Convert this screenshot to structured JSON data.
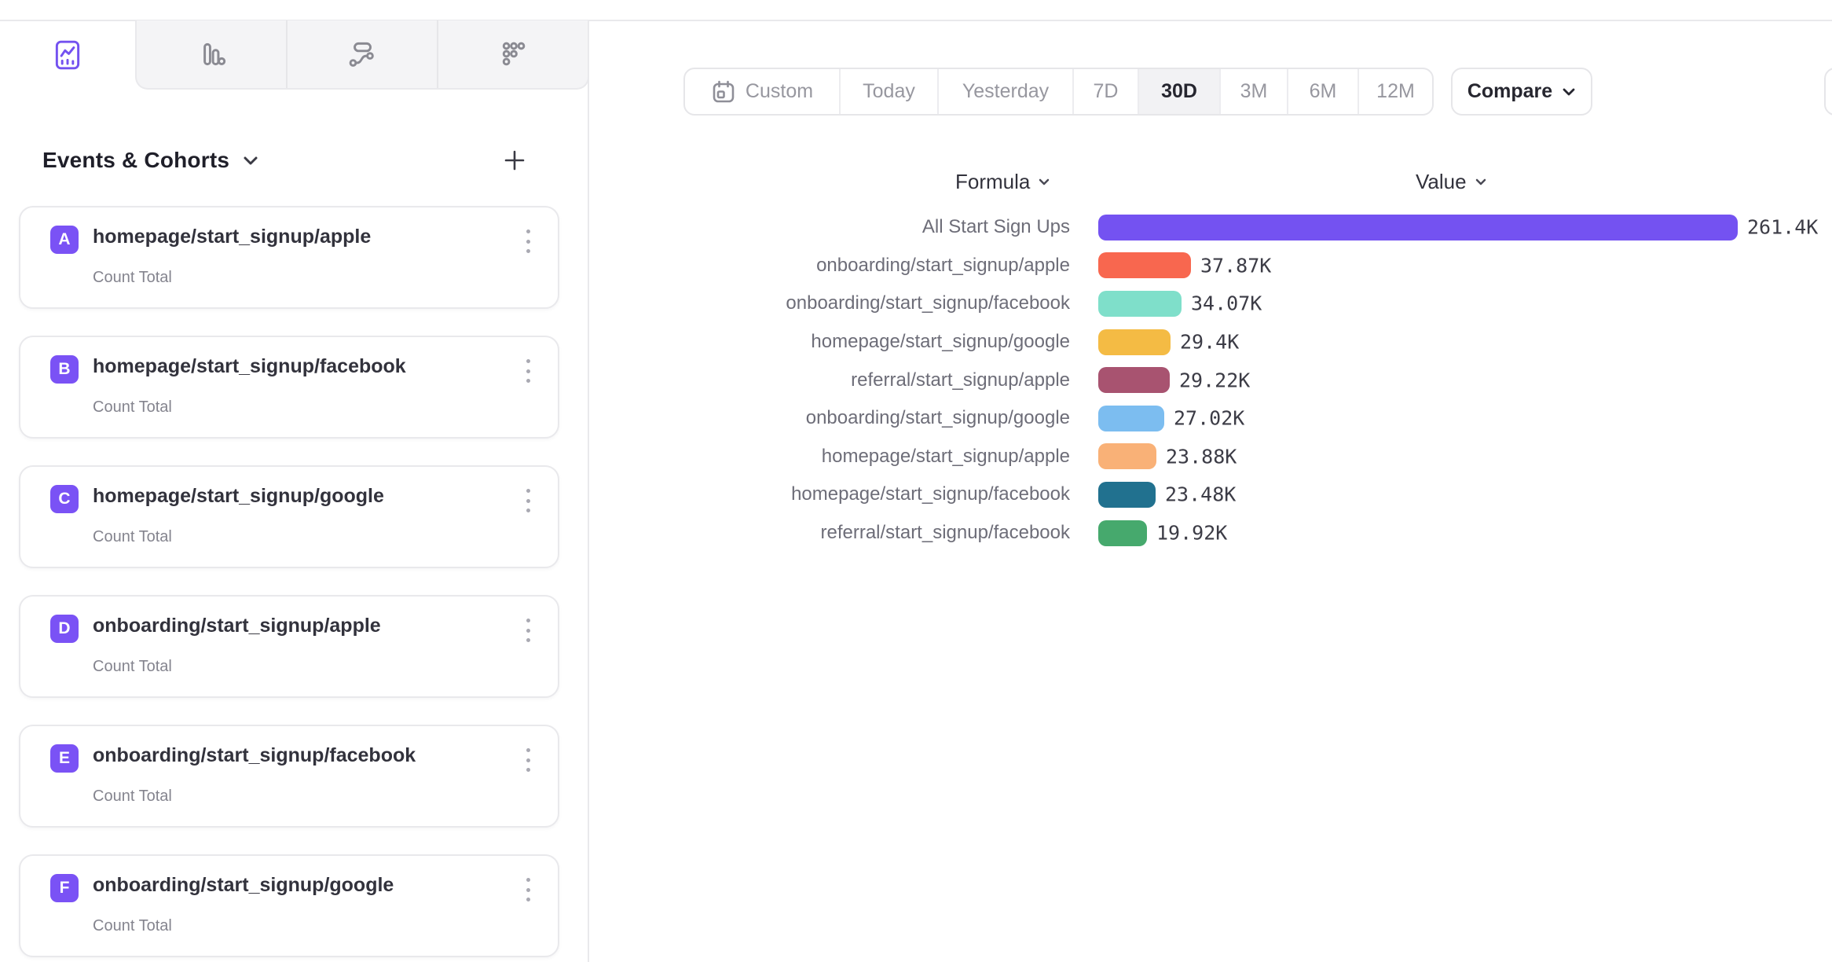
{
  "tabs": {
    "items": [
      {
        "icon": "insights-line-chart-icon",
        "active": true
      },
      {
        "icon": "funnels-bar-icon",
        "active": false
      },
      {
        "icon": "flows-icon",
        "active": false
      },
      {
        "icon": "retention-grid-icon",
        "active": false
      }
    ]
  },
  "sidebar": {
    "header": {
      "title": "Events & Cohorts"
    },
    "badge_color": "#7a52f5",
    "measure_label": "Count Total",
    "cards": [
      {
        "letter": "A",
        "name": "homepage/start_signup/apple",
        "measure": "Count Total"
      },
      {
        "letter": "B",
        "name": "homepage/start_signup/facebook",
        "measure": "Count Total"
      },
      {
        "letter": "C",
        "name": "homepage/start_signup/google",
        "measure": "Count Total"
      },
      {
        "letter": "D",
        "name": "onboarding/start_signup/apple",
        "measure": "Count Total"
      },
      {
        "letter": "E",
        "name": "onboarding/start_signup/facebook",
        "measure": "Count Total"
      },
      {
        "letter": "F",
        "name": "onboarding/start_signup/google",
        "measure": "Count Total"
      }
    ]
  },
  "toolbar": {
    "ranges": [
      {
        "label": "Custom",
        "icon": "calendar-icon",
        "active": false
      },
      {
        "label": "Today",
        "active": false
      },
      {
        "label": "Yesterday",
        "active": false
      },
      {
        "label": "7D",
        "active": false
      },
      {
        "label": "30D",
        "active": true
      },
      {
        "label": "3M",
        "active": false
      },
      {
        "label": "6M",
        "active": false
      },
      {
        "label": "12M",
        "active": false
      }
    ],
    "active_range": "30D",
    "compare_label": "Compare"
  },
  "columns": {
    "formula_label": "Formula",
    "value_label": "Value"
  },
  "chart_data": {
    "type": "bar",
    "orientation": "horizontal",
    "title": "",
    "legend": "none",
    "axes_hidden": true,
    "categories": [
      "All Start Sign Ups",
      "onboarding/start_signup/apple",
      "onboarding/start_signup/facebook",
      "homepage/start_signup/google",
      "referral/start_signup/apple",
      "onboarding/start_signup/google",
      "homepage/start_signup/apple",
      "homepage/start_signup/facebook",
      "referral/start_signup/facebook"
    ],
    "values": [
      261400,
      37870,
      34070,
      29400,
      29220,
      27020,
      23880,
      23480,
      19920
    ],
    "value_labels": [
      "261.4K",
      "37.87K",
      "34.07K",
      "29.4K",
      "29.22K",
      "27.02K",
      "23.88K",
      "23.48K",
      "19.92K"
    ],
    "colors": [
      "#7452f1",
      "#f8674f",
      "#7fdfca",
      "#f4bb44",
      "#a85370",
      "#7cbdf0",
      "#f9b177",
      "#21718f",
      "#46a96d"
    ],
    "max_value": 261400
  }
}
